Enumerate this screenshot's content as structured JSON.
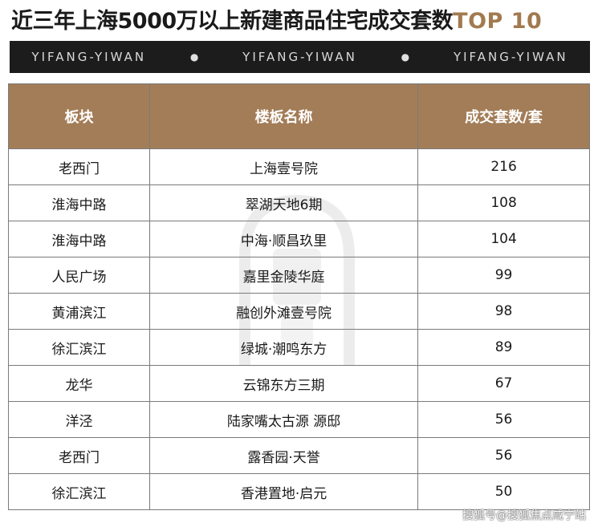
{
  "title": {
    "main": "近三年上海5000万以上新建商品住宅成交套数",
    "highlight": "TOP 10"
  },
  "banner": {
    "items": [
      "YIFANG-YIWAN",
      "YIFANG-YIWAN",
      "YIFANG-YIWAN"
    ],
    "separator": "●"
  },
  "table": {
    "headers": [
      "板块",
      "楼板名称",
      "成交套数/套"
    ],
    "rows": [
      [
        "老西门",
        "上海壹号院",
        "216"
      ],
      [
        "淮海中路",
        "翠湖天地6期",
        "108"
      ],
      [
        "淮海中路",
        "中海·顺昌玖里",
        "104"
      ],
      [
        "人民广场",
        "嘉里金陵华庭",
        "99"
      ],
      [
        "黄浦滨江",
        "融创外滩壹号院",
        "98"
      ],
      [
        "徐汇滨江",
        "绿城·潮鸣东方",
        "89"
      ],
      [
        "龙华",
        "云锦东方三期",
        "67"
      ],
      [
        "洋泾",
        "陆家嘴太古源 源邸",
        "56"
      ],
      [
        "老西门",
        "露香园·天誉",
        "56"
      ],
      [
        "徐汇滨江",
        "香港置地·启元",
        "50"
      ]
    ]
  },
  "footer": {
    "watermark": "搜狐号@搜狐焦点咸宁站"
  },
  "colors": {
    "header_bg": "#a37d58",
    "highlight": "#a27a4f",
    "banner_bg": "#1c1c1c"
  }
}
